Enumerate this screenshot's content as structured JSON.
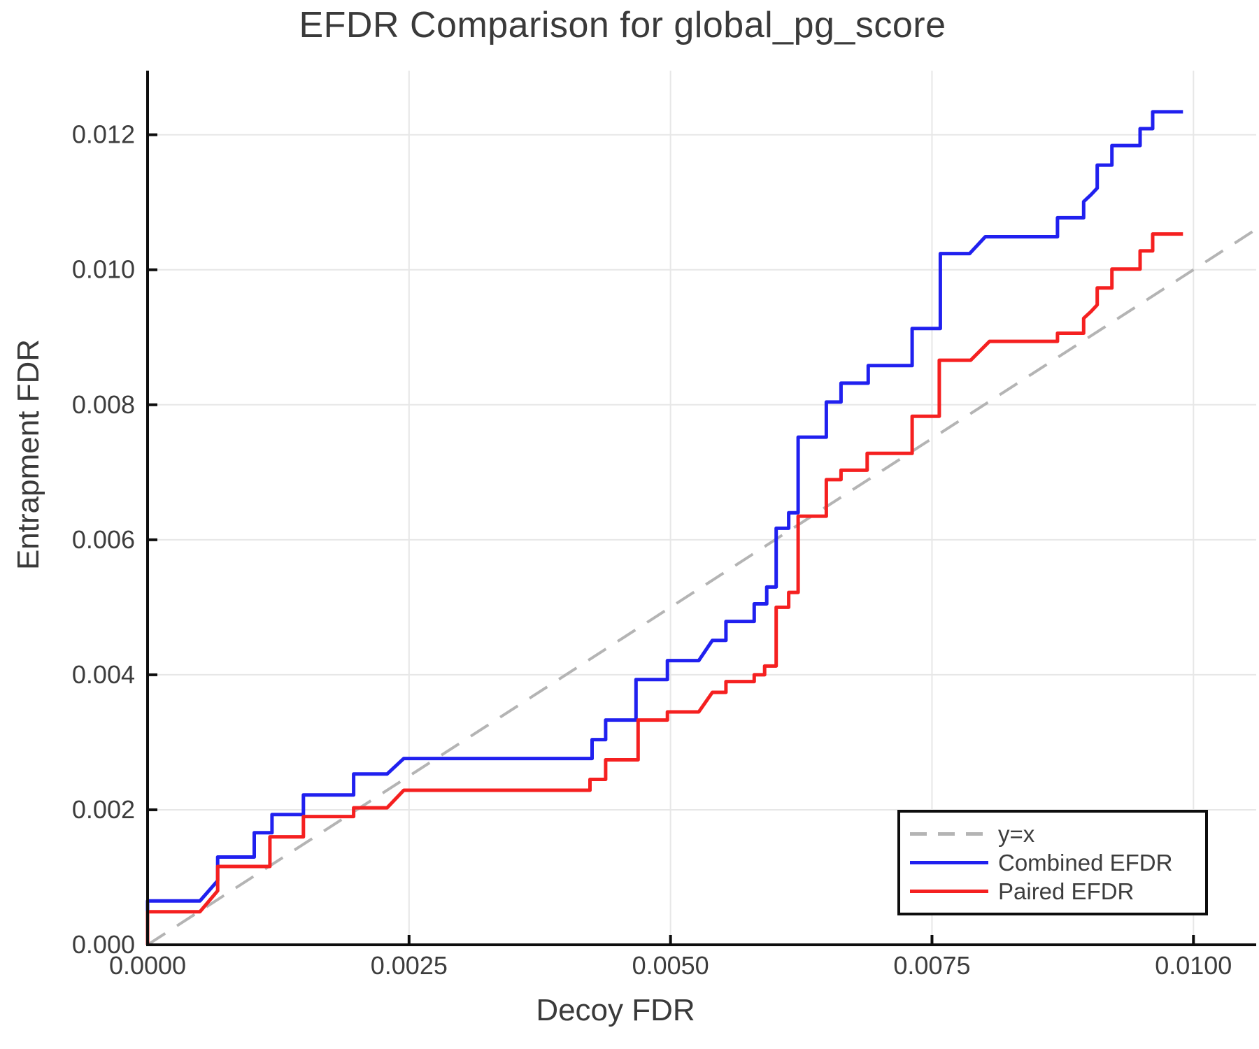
{
  "chart_data": {
    "type": "line",
    "title": "EFDR Comparison for global_pg_score",
    "xlabel": "Decoy FDR",
    "ylabel": "Entrapment FDR",
    "xlim": [
      0,
      0.0106
    ],
    "ylim": [
      0,
      0.01295
    ],
    "grid": true,
    "grid_color": "#e7e7e7",
    "axis_color": "#0d0d0d",
    "tick_label_color": "#3d3d3d",
    "xticks": {
      "values": [
        0,
        0.0025,
        0.005,
        0.0075,
        0.01
      ],
      "labels": [
        "0.0000",
        "0.0025",
        "0.0050",
        "0.0075",
        "0.0100"
      ]
    },
    "yticks": {
      "values": [
        0,
        0.002,
        0.004,
        0.006,
        0.008,
        0.01,
        0.012
      ],
      "labels": [
        "0.000",
        "0.002",
        "0.004",
        "0.006",
        "0.008",
        "0.010",
        "0.012"
      ]
    },
    "legend": {
      "position": "bottom-right",
      "entries": [
        {
          "label": "y=x",
          "color": "#b4b4b4",
          "style": "dashed"
        },
        {
          "label": "Combined EFDR",
          "color": "#2020ef",
          "style": "solid"
        },
        {
          "label": "Paired EFDR",
          "color": "#f52020",
          "style": "solid"
        }
      ]
    },
    "series": [
      {
        "name": "y=x",
        "color": "#b4b4b4",
        "style": "dashed",
        "width": 4,
        "points": [
          [
            0,
            0
          ],
          [
            0.0106,
            0.0106
          ]
        ]
      },
      {
        "name": "Combined EFDR",
        "color": "#2020ef",
        "style": "solid",
        "width": 5,
        "points": [
          [
            0,
            0
          ],
          [
            0,
            0.00065
          ],
          [
            0.0005,
            0.00065
          ],
          [
            0.00067,
            0.00095
          ],
          [
            0.00067,
            0.0013
          ],
          [
            0.00102,
            0.0013
          ],
          [
            0.00102,
            0.00166
          ],
          [
            0.00119,
            0.00166
          ],
          [
            0.00119,
            0.00193
          ],
          [
            0.00149,
            0.00193
          ],
          [
            0.00149,
            0.00222
          ],
          [
            0.00197,
            0.00222
          ],
          [
            0.00197,
            0.00253
          ],
          [
            0.00229,
            0.00253
          ],
          [
            0.00245,
            0.00276
          ],
          [
            0.00425,
            0.00276
          ],
          [
            0.00425,
            0.00304
          ],
          [
            0.00438,
            0.00304
          ],
          [
            0.00438,
            0.00333
          ],
          [
            0.00467,
            0.00333
          ],
          [
            0.00467,
            0.00393
          ],
          [
            0.00497,
            0.00393
          ],
          [
            0.00497,
            0.00421
          ],
          [
            0.00527,
            0.00421
          ],
          [
            0.0054,
            0.00451
          ],
          [
            0.00553,
            0.00451
          ],
          [
            0.00553,
            0.00479
          ],
          [
            0.0058,
            0.00479
          ],
          [
            0.0058,
            0.00505
          ],
          [
            0.00592,
            0.00505
          ],
          [
            0.00592,
            0.0053
          ],
          [
            0.00601,
            0.0053
          ],
          [
            0.00601,
            0.00617
          ],
          [
            0.00613,
            0.00617
          ],
          [
            0.00613,
            0.0064
          ],
          [
            0.00622,
            0.0064
          ],
          [
            0.00622,
            0.00752
          ],
          [
            0.00649,
            0.00752
          ],
          [
            0.00649,
            0.00804
          ],
          [
            0.00663,
            0.00804
          ],
          [
            0.00663,
            0.00832
          ],
          [
            0.00689,
            0.00832
          ],
          [
            0.00689,
            0.00858
          ],
          [
            0.00731,
            0.00858
          ],
          [
            0.00731,
            0.00913
          ],
          [
            0.00758,
            0.00913
          ],
          [
            0.00758,
            0.01024
          ],
          [
            0.00786,
            0.01024
          ],
          [
            0.00801,
            0.01049
          ],
          [
            0.0087,
            0.01049
          ],
          [
            0.0087,
            0.01077
          ],
          [
            0.00895,
            0.01077
          ],
          [
            0.00895,
            0.01101
          ],
          [
            0.00902,
            0.01111
          ],
          [
            0.00908,
            0.01121
          ],
          [
            0.00908,
            0.01155
          ],
          [
            0.00922,
            0.01155
          ],
          [
            0.00922,
            0.01184
          ],
          [
            0.00949,
            0.01184
          ],
          [
            0.00949,
            0.01209
          ],
          [
            0.00961,
            0.01209
          ],
          [
            0.00961,
            0.01234
          ],
          [
            0.0099,
            0.01234
          ]
        ]
      },
      {
        "name": "Paired EFDR",
        "color": "#f52020",
        "style": "solid",
        "width": 5,
        "points": [
          [
            0,
            0
          ],
          [
            0,
            0.00049
          ],
          [
            0.0005,
            0.00049
          ],
          [
            0.00067,
            0.0008
          ],
          [
            0.00067,
            0.00116
          ],
          [
            0.00117,
            0.00116
          ],
          [
            0.00117,
            0.0016
          ],
          [
            0.00149,
            0.0016
          ],
          [
            0.00149,
            0.0019
          ],
          [
            0.00197,
            0.0019
          ],
          [
            0.00197,
            0.00203
          ],
          [
            0.00229,
            0.00203
          ],
          [
            0.00245,
            0.00229
          ],
          [
            0.00423,
            0.00229
          ],
          [
            0.00423,
            0.00245
          ],
          [
            0.00438,
            0.00245
          ],
          [
            0.00438,
            0.00274
          ],
          [
            0.00469,
            0.00274
          ],
          [
            0.00469,
            0.00333
          ],
          [
            0.00497,
            0.00333
          ],
          [
            0.00497,
            0.00345
          ],
          [
            0.00527,
            0.00345
          ],
          [
            0.0054,
            0.00374
          ],
          [
            0.00553,
            0.00374
          ],
          [
            0.00553,
            0.0039
          ],
          [
            0.0058,
            0.0039
          ],
          [
            0.0058,
            0.004
          ],
          [
            0.0059,
            0.004
          ],
          [
            0.0059,
            0.00413
          ],
          [
            0.00601,
            0.00413
          ],
          [
            0.00601,
            0.005
          ],
          [
            0.00613,
            0.005
          ],
          [
            0.00613,
            0.00522
          ],
          [
            0.00622,
            0.00522
          ],
          [
            0.00622,
            0.00635
          ],
          [
            0.00649,
            0.00635
          ],
          [
            0.00649,
            0.00689
          ],
          [
            0.00663,
            0.00689
          ],
          [
            0.00663,
            0.00703
          ],
          [
            0.00688,
            0.00703
          ],
          [
            0.00688,
            0.00728
          ],
          [
            0.00731,
            0.00728
          ],
          [
            0.00731,
            0.00783
          ],
          [
            0.00757,
            0.00783
          ],
          [
            0.00757,
            0.00866
          ],
          [
            0.00787,
            0.00866
          ],
          [
            0.00805,
            0.00894
          ],
          [
            0.0087,
            0.00894
          ],
          [
            0.0087,
            0.00906
          ],
          [
            0.00895,
            0.00906
          ],
          [
            0.00895,
            0.00928
          ],
          [
            0.00902,
            0.00938
          ],
          [
            0.00908,
            0.00948
          ],
          [
            0.00908,
            0.00973
          ],
          [
            0.00922,
            0.00973
          ],
          [
            0.00922,
            0.01001
          ],
          [
            0.00949,
            0.01001
          ],
          [
            0.00949,
            0.01028
          ],
          [
            0.00961,
            0.01028
          ],
          [
            0.00961,
            0.01053
          ],
          [
            0.0099,
            0.01053
          ]
        ]
      }
    ]
  }
}
